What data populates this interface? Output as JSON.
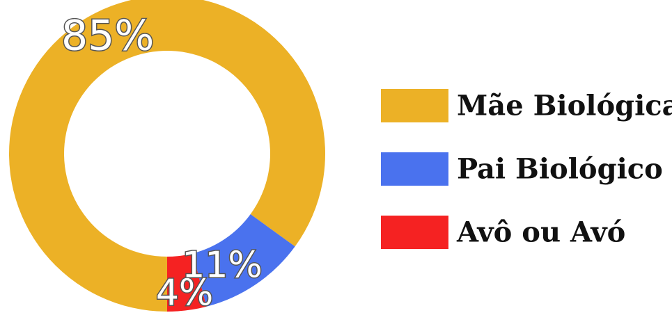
{
  "chart_data": {
    "type": "pie",
    "variant": "donut",
    "categories": [
      "Mãe Biológica",
      "Pai Biológico",
      "Avô ou Avó"
    ],
    "values": [
      85,
      11,
      4
    ],
    "labels": [
      "85%",
      "11%",
      "4%"
    ],
    "colors": [
      "#ECB126",
      "#4A72EE",
      "#F52222"
    ],
    "legend": {
      "position": "right",
      "items": [
        "Mãe Biológica",
        "Pai Biológico",
        "Avô ou Avó"
      ]
    }
  }
}
